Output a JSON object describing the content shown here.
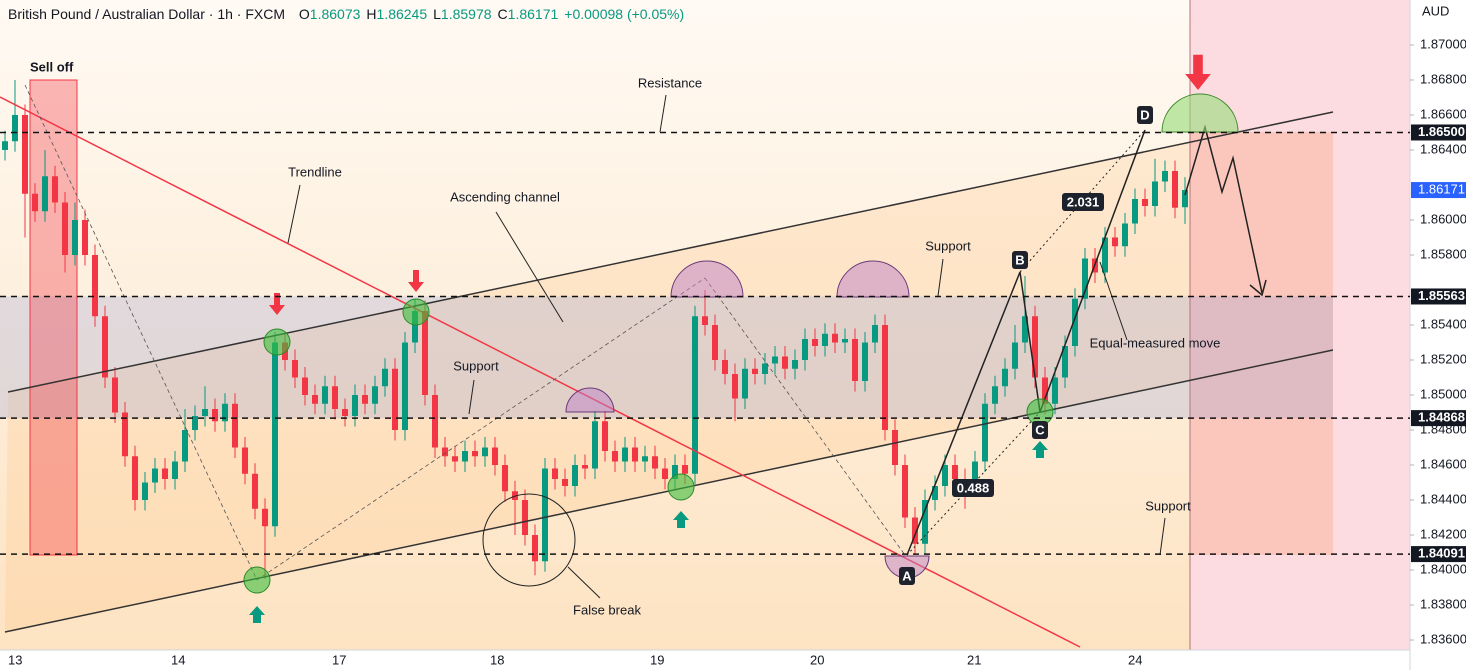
{
  "chart_data": {
    "type": "candlestick",
    "title": "British Pound / Australian Dollar · 1h · FXCM",
    "ohlc_labels": [
      "O",
      "H",
      "L",
      "C"
    ],
    "change": "+0.00098 (+0.05%)",
    "currency": "AUD",
    "up_color": "#089981",
    "down_color": "#f23645",
    "candles": [
      [
        1.864,
        1.8651,
        1.8634,
        1.8645
      ],
      [
        1.8645,
        1.868,
        1.8639,
        1.866
      ],
      [
        1.866,
        1.8666,
        1.859,
        1.8615
      ],
      [
        1.8615,
        1.8621,
        1.8599,
        1.8605
      ],
      [
        1.8605,
        1.864,
        1.8599,
        1.8625
      ],
      [
        1.8625,
        1.8631,
        1.8604,
        1.861
      ],
      [
        1.861,
        1.8616,
        1.857,
        1.858
      ],
      [
        1.858,
        1.861,
        1.8574,
        1.86
      ],
      [
        1.86,
        1.8606,
        1.8574,
        1.858
      ],
      [
        1.858,
        1.8586,
        1.8539,
        1.8545
      ],
      [
        1.8545,
        1.8551,
        1.8504,
        1.851
      ],
      [
        1.851,
        1.8516,
        1.8484,
        1.849
      ],
      [
        1.849,
        1.8496,
        1.8459,
        1.8465
      ],
      [
        1.8465,
        1.8471,
        1.8434,
        1.844
      ],
      [
        1.844,
        1.8456,
        1.8434,
        1.845
      ],
      [
        1.845,
        1.8464,
        1.8444,
        1.8458
      ],
      [
        1.8458,
        1.8464,
        1.8446,
        1.8452
      ],
      [
        1.8452,
        1.8468,
        1.8446,
        1.8462
      ],
      [
        1.8462,
        1.8492,
        1.8456,
        1.848
      ],
      [
        1.848,
        1.8494,
        1.8474,
        1.8488
      ],
      [
        1.8488,
        1.8505,
        1.8482,
        1.8492
      ],
      [
        1.8492,
        1.8498,
        1.8479,
        1.8485
      ],
      [
        1.8485,
        1.8501,
        1.8479,
        1.8495
      ],
      [
        1.8495,
        1.8501,
        1.8464,
        1.847
      ],
      [
        1.847,
        1.8476,
        1.8449,
        1.8455
      ],
      [
        1.8455,
        1.8461,
        1.8429,
        1.8435
      ],
      [
        1.8435,
        1.8441,
        1.8395,
        1.8425
      ],
      [
        1.8425,
        1.8536,
        1.8419,
        1.853
      ],
      [
        1.853,
        1.8536,
        1.8514,
        1.852
      ],
      [
        1.852,
        1.8526,
        1.8504,
        1.851
      ],
      [
        1.851,
        1.8516,
        1.8494,
        1.85
      ],
      [
        1.85,
        1.8506,
        1.8489,
        1.8495
      ],
      [
        1.8495,
        1.8511,
        1.8489,
        1.8505
      ],
      [
        1.8505,
        1.8511,
        1.8486,
        1.8492
      ],
      [
        1.8492,
        1.8498,
        1.8482,
        1.8488
      ],
      [
        1.8488,
        1.8506,
        1.8482,
        1.85
      ],
      [
        1.85,
        1.8506,
        1.8489,
        1.8495
      ],
      [
        1.8495,
        1.8511,
        1.8489,
        1.8505
      ],
      [
        1.8505,
        1.8521,
        1.8499,
        1.8515
      ],
      [
        1.8515,
        1.8521,
        1.8474,
        1.848
      ],
      [
        1.848,
        1.8536,
        1.8474,
        1.853
      ],
      [
        1.853,
        1.8555,
        1.8524,
        1.8548
      ],
      [
        1.8548,
        1.8554,
        1.8494,
        1.85
      ],
      [
        1.85,
        1.8506,
        1.8464,
        1.847
      ],
      [
        1.847,
        1.8476,
        1.8459,
        1.8465
      ],
      [
        1.8465,
        1.8471,
        1.8456,
        1.8462
      ],
      [
        1.8462,
        1.8474,
        1.8456,
        1.8468
      ],
      [
        1.8468,
        1.8474,
        1.8459,
        1.8465
      ],
      [
        1.8465,
        1.8476,
        1.8459,
        1.847
      ],
      [
        1.847,
        1.8476,
        1.8454,
        1.846
      ],
      [
        1.846,
        1.8466,
        1.8439,
        1.8445
      ],
      [
        1.8445,
        1.8451,
        1.842,
        1.844
      ],
      [
        1.844,
        1.8446,
        1.8414,
        1.842
      ],
      [
        1.842,
        1.8426,
        1.8397,
        1.8405
      ],
      [
        1.8405,
        1.8464,
        1.8399,
        1.8458
      ],
      [
        1.8458,
        1.8464,
        1.8446,
        1.8452
      ],
      [
        1.8452,
        1.8458,
        1.8442,
        1.8448
      ],
      [
        1.8448,
        1.8466,
        1.8442,
        1.846
      ],
      [
        1.846,
        1.8466,
        1.8452,
        1.8458
      ],
      [
        1.8458,
        1.8491,
        1.8452,
        1.8485
      ],
      [
        1.8485,
        1.8491,
        1.8462,
        1.8468
      ],
      [
        1.8468,
        1.8474,
        1.8456,
        1.8462
      ],
      [
        1.8462,
        1.8476,
        1.8456,
        1.847
      ],
      [
        1.847,
        1.8476,
        1.8456,
        1.8462
      ],
      [
        1.8462,
        1.8471,
        1.8456,
        1.8465
      ],
      [
        1.8465,
        1.8471,
        1.8452,
        1.8458
      ],
      [
        1.8458,
        1.8464,
        1.8446,
        1.8452
      ],
      [
        1.8452,
        1.8466,
        1.8446,
        1.846
      ],
      [
        1.846,
        1.8466,
        1.8449,
        1.8455
      ],
      [
        1.8455,
        1.8551,
        1.8449,
        1.8545
      ],
      [
        1.8545,
        1.856,
        1.8534,
        1.854
      ],
      [
        1.854,
        1.8546,
        1.8514,
        1.852
      ],
      [
        1.852,
        1.8526,
        1.8506,
        1.8512
      ],
      [
        1.8512,
        1.8518,
        1.8485,
        1.8498
      ],
      [
        1.8498,
        1.8521,
        1.8492,
        1.8515
      ],
      [
        1.8515,
        1.8521,
        1.8506,
        1.8512
      ],
      [
        1.8512,
        1.8524,
        1.8506,
        1.8518
      ],
      [
        1.8518,
        1.8528,
        1.8512,
        1.8522
      ],
      [
        1.8522,
        1.8528,
        1.8509,
        1.8515
      ],
      [
        1.8515,
        1.8526,
        1.8509,
        1.852
      ],
      [
        1.852,
        1.8538,
        1.8514,
        1.8532
      ],
      [
        1.8532,
        1.8538,
        1.8522,
        1.8528
      ],
      [
        1.8528,
        1.8541,
        1.8522,
        1.8535
      ],
      [
        1.8535,
        1.8541,
        1.8524,
        1.853
      ],
      [
        1.853,
        1.8538,
        1.8524,
        1.8532
      ],
      [
        1.8532,
        1.8538,
        1.8502,
        1.8508
      ],
      [
        1.8508,
        1.8536,
        1.8502,
        1.853
      ],
      [
        1.853,
        1.8546,
        1.8524,
        1.854
      ],
      [
        1.854,
        1.8546,
        1.8474,
        1.848
      ],
      [
        1.848,
        1.8486,
        1.8454,
        1.846
      ],
      [
        1.846,
        1.8466,
        1.8424,
        1.843
      ],
      [
        1.843,
        1.8436,
        1.8409,
        1.8415
      ],
      [
        1.8415,
        1.8446,
        1.8409,
        1.844
      ],
      [
        1.844,
        1.8454,
        1.8434,
        1.8448
      ],
      [
        1.8448,
        1.8466,
        1.8442,
        1.846
      ],
      [
        1.846,
        1.8466,
        1.8446,
        1.8452
      ],
      [
        1.8452,
        1.8458,
        1.8435,
        1.8448
      ],
      [
        1.8448,
        1.8468,
        1.8442,
        1.8462
      ],
      [
        1.8462,
        1.8501,
        1.8456,
        1.8495
      ],
      [
        1.8495,
        1.8511,
        1.8489,
        1.8505
      ],
      [
        1.8505,
        1.8521,
        1.8499,
        1.8515
      ],
      [
        1.8515,
        1.854,
        1.8509,
        1.853
      ],
      [
        1.853,
        1.8568,
        1.8524,
        1.8545
      ],
      [
        1.8545,
        1.8551,
        1.8504,
        1.851
      ],
      [
        1.851,
        1.8516,
        1.8489,
        1.8495
      ],
      [
        1.8495,
        1.8516,
        1.8489,
        1.851
      ],
      [
        1.851,
        1.8534,
        1.8504,
        1.8528
      ],
      [
        1.8528,
        1.8561,
        1.8522,
        1.8555
      ],
      [
        1.8555,
        1.8584,
        1.8549,
        1.8578
      ],
      [
        1.8578,
        1.8584,
        1.8564,
        1.857
      ],
      [
        1.857,
        1.8596,
        1.8564,
        1.859
      ],
      [
        1.859,
        1.8596,
        1.8579,
        1.8585
      ],
      [
        1.8585,
        1.8604,
        1.8579,
        1.8598
      ],
      [
        1.8598,
        1.8618,
        1.8592,
        1.8612
      ],
      [
        1.8612,
        1.8618,
        1.8602,
        1.8608
      ],
      [
        1.8608,
        1.8635,
        1.8602,
        1.8622
      ],
      [
        1.8622,
        1.8634,
        1.8616,
        1.8628
      ],
      [
        1.8628,
        1.8634,
        1.8601,
        1.8607
      ],
      [
        1.86073,
        1.86245,
        1.85978,
        1.86171
      ]
    ],
    "xlim": [
      -0.5,
      140.5
    ],
    "xticks": [
      {
        "value": 0.8,
        "label": "13"
      },
      {
        "value": 17.1,
        "label": "14"
      },
      {
        "value": 33.2,
        "label": "17"
      },
      {
        "value": 49,
        "label": "18"
      },
      {
        "value": 65,
        "label": "19"
      },
      {
        "value": 81,
        "label": "20"
      },
      {
        "value": 96.7,
        "label": "21"
      },
      {
        "value": 112.8,
        "label": "24"
      }
    ],
    "ylim": [
      1.83543,
      1.87257
    ],
    "yticks": [
      {
        "value": 1.87,
        "label": "1.87000"
      },
      {
        "value": 1.868,
        "label": "1.86800"
      },
      {
        "value": 1.866,
        "label": "1.86600"
      },
      {
        "value": 1.864,
        "label": "1.86400"
      },
      {
        "value": 1.86,
        "label": "1.86000"
      },
      {
        "value": 1.858,
        "label": "1.85800"
      },
      {
        "value": 1.854,
        "label": "1.85400"
      },
      {
        "value": 1.852,
        "label": "1.85200"
      },
      {
        "value": 1.85,
        "label": "1.85000"
      },
      {
        "value": 1.848,
        "label": "1.84800"
      },
      {
        "value": 1.846,
        "label": "1.84600"
      },
      {
        "value": 1.844,
        "label": "1.84400"
      },
      {
        "value": 1.842,
        "label": "1.84200"
      },
      {
        "value": 1.84,
        "label": "1.84000"
      },
      {
        "value": 1.838,
        "label": "1.83800"
      },
      {
        "value": 1.836,
        "label": "1.83600"
      }
    ],
    "levels": [
      {
        "value": 1.865,
        "label": "1.86500"
      },
      {
        "value": 1.85563,
        "label": "1.85563"
      },
      {
        "value": 1.84868,
        "label": "1.84868"
      },
      {
        "value": 1.84091,
        "label": "1.84091"
      }
    ],
    "annotations": [
      "Sell off",
      "Resistance",
      "Trendline",
      "Ascending channel",
      "Support",
      "Support",
      "Support",
      "False break",
      "Equal-measured move",
      "0.488",
      "2.031",
      "A",
      "B",
      "C",
      "D"
    ]
  }
}
